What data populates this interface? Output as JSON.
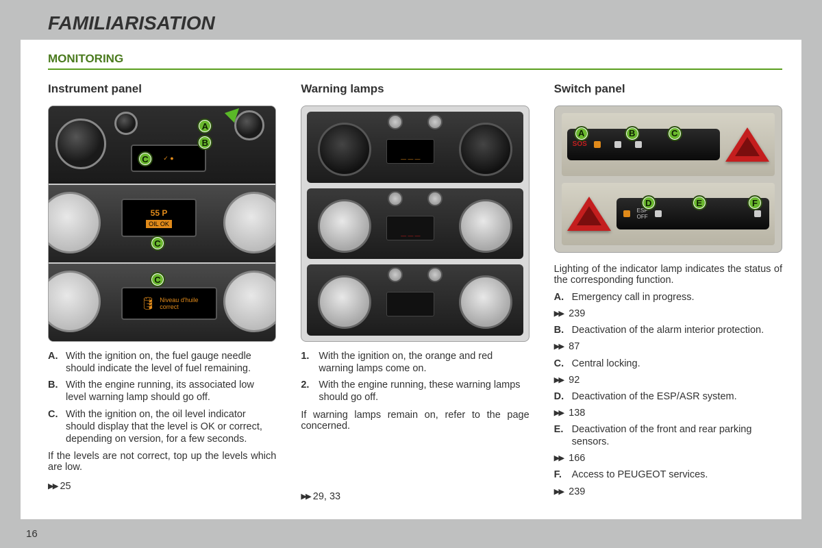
{
  "page": {
    "title": "FAMILIARISATION",
    "number": "16"
  },
  "section": {
    "title": "MONITORING",
    "rule_color": "#5a9e1f"
  },
  "ref_symbol": "▶▶",
  "col1": {
    "heading": "Instrument panel",
    "callouts": {
      "a": "A",
      "b": "B",
      "c": "C"
    },
    "screen_text_2": {
      "line1": "55 P",
      "line2": "OIL OK"
    },
    "screen_text_3": {
      "line1": "Niveau d'huile",
      "line2": "correct"
    },
    "items": [
      {
        "key": "A.",
        "txt": "With the ignition on, the fuel gauge needle should indicate the level of fuel remaining."
      },
      {
        "key": "B.",
        "txt": "With the engine running, its associated low level warning lamp should go off."
      },
      {
        "key": "C.",
        "txt": "With the ignition on, the oil level indicator should display that the level is OK or correct, depending on version, for a few seconds."
      }
    ],
    "note": "If the levels are not correct, top up the levels which are low.",
    "page_ref": "25"
  },
  "col2": {
    "heading": "Warning lamps",
    "items": [
      {
        "key": "1.",
        "txt": "With the ignition on, the orange and red warning lamps come on."
      },
      {
        "key": "2.",
        "txt": "With the engine running, these warning lamps should go off."
      }
    ],
    "note": "If warning lamps remain on, refer to the page concerned.",
    "page_ref": "29, 33"
  },
  "col3": {
    "heading": "Switch panel",
    "callouts": {
      "a": "A",
      "b": "B",
      "c": "C",
      "d": "D",
      "e": "E",
      "f": "F"
    },
    "intro": "Lighting of the indicator lamp indicates the status of the corresponding function.",
    "items": [
      {
        "key": "A.",
        "txt": "Emergency call in progress.",
        "ref": "239"
      },
      {
        "key": "B.",
        "txt": "Deactivation of the alarm interior protection.",
        "ref": "87"
      },
      {
        "key": "C.",
        "txt": "Central locking.",
        "ref": "92"
      },
      {
        "key": "D.",
        "txt": "Deactivation of the ESP/ASR system.",
        "ref": "138"
      },
      {
        "key": "E.",
        "txt": "Deactivation of the front and rear parking sensors.",
        "ref": "166"
      },
      {
        "key": "F.",
        "txt": "Access to PEUGEOT services.",
        "ref": "239"
      }
    ]
  }
}
